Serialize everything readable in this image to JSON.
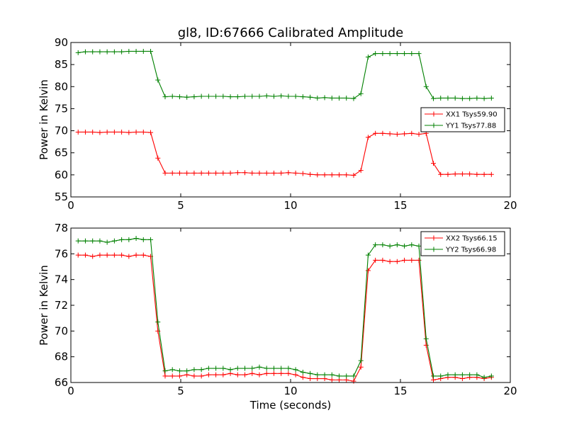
{
  "chart_data": [
    {
      "type": "line",
      "title": "gl8, ID:67666 Calibrated Amplitude",
      "xlabel": "",
      "ylabel": "Power in Kelvin",
      "xlim": [
        0,
        20
      ],
      "ylim": [
        55,
        90
      ],
      "xticks": [
        "0",
        "5",
        "10",
        "15",
        "20"
      ],
      "yticks": [
        "55",
        "60",
        "65",
        "70",
        "75",
        "80",
        "85",
        "90"
      ],
      "grid": false,
      "legend_position": "center-right",
      "x": [
        0.33,
        0.66,
        0.99,
        1.32,
        1.65,
        1.98,
        2.31,
        2.64,
        2.97,
        3.3,
        3.63,
        3.96,
        4.29,
        4.62,
        4.95,
        5.28,
        5.61,
        5.94,
        6.27,
        6.6,
        6.93,
        7.26,
        7.59,
        7.92,
        8.25,
        8.58,
        8.91,
        9.24,
        9.57,
        9.9,
        10.23,
        10.56,
        10.89,
        11.22,
        11.55,
        11.88,
        12.21,
        12.54,
        12.87,
        13.2,
        13.53,
        13.86,
        14.19,
        14.52,
        14.85,
        15.18,
        15.51,
        15.84,
        16.17,
        16.5,
        16.83,
        17.16,
        17.49,
        17.82,
        18.15,
        18.48,
        18.81,
        19.14
      ],
      "series": [
        {
          "name": "XX1 Tsys59.90",
          "color": "#ff0000",
          "values": [
            69.7,
            69.7,
            69.7,
            69.6,
            69.7,
            69.7,
            69.7,
            69.6,
            69.7,
            69.7,
            69.6,
            63.8,
            60.4,
            60.4,
            60.4,
            60.4,
            60.4,
            60.4,
            60.4,
            60.4,
            60.4,
            60.4,
            60.5,
            60.5,
            60.4,
            60.4,
            60.4,
            60.4,
            60.4,
            60.5,
            60.4,
            60.3,
            60.1,
            60.0,
            60.0,
            60.0,
            60.0,
            60.0,
            59.9,
            61.0,
            68.5,
            69.4,
            69.4,
            69.3,
            69.2,
            69.3,
            69.4,
            69.2,
            69.4,
            62.6,
            60.1,
            60.1,
            60.2,
            60.2,
            60.2,
            60.1,
            60.1,
            60.1
          ]
        },
        {
          "name": "YY1 Tsys77.88",
          "color": "#008000",
          "values": [
            87.7,
            87.9,
            87.9,
            87.9,
            87.9,
            87.9,
            87.9,
            88.0,
            88.0,
            88.0,
            88.0,
            81.5,
            77.7,
            77.8,
            77.7,
            77.6,
            77.7,
            77.8,
            77.8,
            77.8,
            77.8,
            77.7,
            77.7,
            77.8,
            77.8,
            77.8,
            77.9,
            77.8,
            77.9,
            77.8,
            77.8,
            77.7,
            77.6,
            77.4,
            77.5,
            77.4,
            77.4,
            77.4,
            77.3,
            78.4,
            86.7,
            87.5,
            87.5,
            87.5,
            87.5,
            87.5,
            87.5,
            87.5,
            80.0,
            77.3,
            77.4,
            77.4,
            77.4,
            77.3,
            77.3,
            77.4,
            77.3,
            77.4
          ]
        }
      ]
    },
    {
      "type": "line",
      "title": "",
      "xlabel": "Time (seconds)",
      "ylabel": "Power in Kelvin",
      "xlim": [
        0,
        20
      ],
      "ylim": [
        66,
        78
      ],
      "xticks": [
        "0",
        "5",
        "10",
        "15",
        "20"
      ],
      "yticks": [
        "66",
        "68",
        "70",
        "72",
        "74",
        "76",
        "78"
      ],
      "grid": false,
      "legend_position": "top-right",
      "x": [
        0.33,
        0.66,
        0.99,
        1.32,
        1.65,
        1.98,
        2.31,
        2.64,
        2.97,
        3.3,
        3.63,
        3.96,
        4.29,
        4.62,
        4.95,
        5.28,
        5.61,
        5.94,
        6.27,
        6.6,
        6.93,
        7.26,
        7.59,
        7.92,
        8.25,
        8.58,
        8.91,
        9.24,
        9.57,
        9.9,
        10.23,
        10.56,
        10.89,
        11.22,
        11.55,
        11.88,
        12.21,
        12.54,
        12.87,
        13.2,
        13.53,
        13.86,
        14.19,
        14.52,
        14.85,
        15.18,
        15.51,
        15.84,
        16.17,
        16.5,
        16.83,
        17.16,
        17.49,
        17.82,
        18.15,
        18.48,
        18.81,
        19.14
      ],
      "series": [
        {
          "name": "XX2 Tsys66.15",
          "color": "#ff0000",
          "values": [
            75.9,
            75.9,
            75.8,
            75.9,
            75.9,
            75.9,
            75.9,
            75.8,
            75.9,
            75.9,
            75.8,
            70.0,
            66.5,
            66.5,
            66.5,
            66.6,
            66.5,
            66.5,
            66.6,
            66.6,
            66.6,
            66.7,
            66.6,
            66.6,
            66.7,
            66.6,
            66.7,
            66.7,
            66.7,
            66.7,
            66.6,
            66.4,
            66.3,
            66.3,
            66.3,
            66.2,
            66.2,
            66.2,
            66.1,
            67.2,
            74.7,
            75.5,
            75.5,
            75.4,
            75.4,
            75.5,
            75.5,
            75.5,
            68.9,
            66.2,
            66.3,
            66.4,
            66.4,
            66.3,
            66.4,
            66.4,
            66.3,
            66.4
          ]
        },
        {
          "name": "YY2 Tsys66.98",
          "color": "#008000",
          "values": [
            77.0,
            77.0,
            77.0,
            77.0,
            76.9,
            77.0,
            77.1,
            77.1,
            77.2,
            77.1,
            77.1,
            70.7,
            66.9,
            67.0,
            66.9,
            66.9,
            67.0,
            67.0,
            67.1,
            67.1,
            67.1,
            67.0,
            67.1,
            67.1,
            67.1,
            67.2,
            67.1,
            67.1,
            67.1,
            67.1,
            67.0,
            66.8,
            66.7,
            66.6,
            66.6,
            66.6,
            66.5,
            66.5,
            66.5,
            67.7,
            75.9,
            76.7,
            76.7,
            76.6,
            76.7,
            76.6,
            76.7,
            76.6,
            69.4,
            66.5,
            66.5,
            66.6,
            66.6,
            66.6,
            66.6,
            66.6,
            66.4,
            66.5
          ]
        }
      ]
    }
  ]
}
